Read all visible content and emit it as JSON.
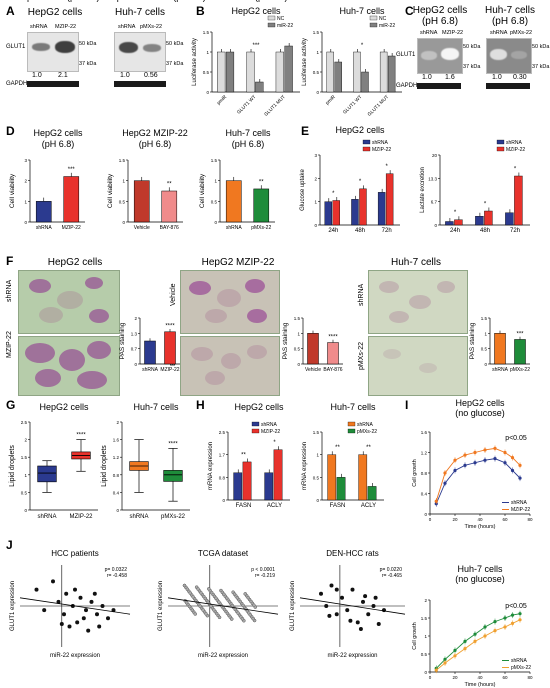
{
  "panels": {
    "A": "A",
    "B": "B",
    "C": "C",
    "D": "D",
    "E": "E",
    "F": "F",
    "G": "G",
    "H": "H",
    "I": "I",
    "J": "J"
  },
  "blotA": {
    "left": {
      "title": "HepG2 cells",
      "lanes": [
        "shRNA",
        "MZIP-22"
      ],
      "protein": "GLUT1",
      "kda1": "50 kDa",
      "kda2": "37 kDa",
      "quant": [
        "1.0",
        "2.1"
      ],
      "loading": "GAPDH"
    },
    "right": {
      "title": "Huh-7 cells",
      "lanes": [
        "shRNA",
        "pMXs-22"
      ],
      "kda1": "50 kDa",
      "kda2": "37 kDa",
      "quant": [
        "1.0",
        "0.56"
      ]
    }
  },
  "blotC": {
    "left": {
      "title": "HepG2 cells",
      "subtitle": "(pH 6.8)",
      "lanes": [
        "shRNA",
        "MZIP-22"
      ],
      "protein": "GLUT1",
      "kda1": "50 kDa",
      "kda2": "37 kDa",
      "quant": [
        "1.0",
        "1.6"
      ],
      "loading": "GAPDH"
    },
    "right": {
      "title": "Huh-7 cells",
      "subtitle": "(pH 6.8)",
      "lanes": [
        "shRNA",
        "pMXs-22"
      ],
      "kda1": "50 kDa",
      "kda2": "37 kDa",
      "quant": [
        "1.0",
        "0.30"
      ]
    }
  },
  "micro": {
    "g1": {
      "title": "HepG2 cells",
      "rows": [
        "shRNA",
        "MZIP-22"
      ]
    },
    "g2": {
      "title": "HepG2 MZIP-22",
      "rows": [
        "Vehicle",
        "BAY-876"
      ]
    },
    "g3": {
      "title": "Huh-7 cells",
      "rows": [
        "shRNA",
        "pMXs-22"
      ]
    }
  },
  "chart_data": [
    {
      "id": "B1",
      "type": "bar",
      "title": "HepG2 cells",
      "ylabel": "Luciferase activity",
      "categories": [
        "pmiR",
        "GLUT1 WT",
        "GLUT1 MUT"
      ],
      "series": [
        {
          "name": "NC",
          "values": [
            1.0,
            1.0,
            1.0
          ]
        },
        {
          "name": "miR-22",
          "values": [
            1.0,
            0.25,
            1.15
          ]
        }
      ],
      "ylim": [
        0,
        1.5
      ],
      "annotations": [
        "***"
      ]
    },
    {
      "id": "B2",
      "type": "bar",
      "title": "Huh-7 cells",
      "ylabel": "Luciferase activity",
      "categories": [
        "pmiR",
        "GLUT1 WT",
        "GLUT1 MUT"
      ],
      "series": [
        {
          "name": "NC",
          "values": [
            1.0,
            1.0,
            1.0
          ]
        },
        {
          "name": "miR-22",
          "values": [
            0.75,
            0.5,
            0.9
          ]
        }
      ],
      "ylim": [
        0,
        1.5
      ],
      "annotations": [
        "*"
      ]
    },
    {
      "id": "D1",
      "type": "bar",
      "title": "HepG2 cells (pH 6.8)",
      "ylabel": "Cell viability",
      "categories": [
        "shRNA",
        "MZIP-22"
      ],
      "values": [
        1.0,
        2.2
      ],
      "colors": [
        "#2b3a8f",
        "#e8322c"
      ],
      "ylim": [
        0,
        3
      ],
      "annotations": [
        "***"
      ]
    },
    {
      "id": "D2",
      "type": "bar",
      "title": "HepG2 MZIP-22 (pH 6.8)",
      "ylabel": "Cell viability",
      "categories": [
        "Vehicle",
        "BAY-876"
      ],
      "values": [
        1.0,
        0.75
      ],
      "colors": [
        "#c0392b",
        "#f08b8b"
      ],
      "ylim": [
        0,
        1.5
      ],
      "annotations": [
        "**"
      ]
    },
    {
      "id": "D3",
      "type": "bar",
      "title": "Huh-7 cells (pH 6.8)",
      "ylabel": "Cell viability",
      "categories": [
        "shRNA",
        "pMXs-22"
      ],
      "values": [
        1.0,
        0.8
      ],
      "colors": [
        "#f07820",
        "#1e8c3a"
      ],
      "ylim": [
        0,
        1.5
      ],
      "annotations": [
        "**"
      ]
    },
    {
      "id": "E1",
      "type": "bar",
      "title": "HepG2 cells",
      "ylabel": "Glucose uptake",
      "categories": [
        "24h",
        "48h",
        "72h"
      ],
      "series": [
        {
          "name": "shRNA",
          "values": [
            1.0,
            1.1,
            1.4
          ]
        },
        {
          "name": "MZIP-22",
          "values": [
            1.05,
            1.55,
            2.2
          ]
        }
      ],
      "ylim": [
        0,
        3
      ],
      "annotations": [
        "*",
        "*",
        "*"
      ]
    },
    {
      "id": "E2",
      "type": "bar",
      "ylabel": "Lactate excretion",
      "categories": [
        "24h",
        "48h",
        "72h"
      ],
      "series": [
        {
          "name": "shRNA",
          "values": [
            1.0,
            2.5,
            3.5
          ]
        },
        {
          "name": "MZIP-22",
          "values": [
            1.5,
            4.0,
            14.0
          ]
        }
      ],
      "ylim": [
        0,
        20
      ],
      "annotations": [
        "*",
        "*",
        "*"
      ]
    },
    {
      "id": "F1",
      "type": "bar",
      "ylabel": "PAS staining",
      "categories": [
        "shRNA",
        "MZIP-22"
      ],
      "values": [
        1.0,
        1.4
      ],
      "colors": [
        "#2b3a8f",
        "#e8322c"
      ],
      "ylim": [
        0,
        2
      ],
      "annotations": [
        "****"
      ]
    },
    {
      "id": "F2",
      "type": "bar",
      "ylabel": "PAS staining",
      "categories": [
        "Vehicle",
        "BAY-876"
      ],
      "values": [
        1.0,
        0.7
      ],
      "colors": [
        "#c0392b",
        "#f08b8b"
      ],
      "ylim": [
        0,
        1.5
      ],
      "annotations": [
        "****"
      ]
    },
    {
      "id": "F3",
      "type": "bar",
      "ylabel": "PAS staining",
      "categories": [
        "shRNA",
        "pMXs-22"
      ],
      "values": [
        1.0,
        0.8
      ],
      "colors": [
        "#f07820",
        "#1e8c3a"
      ],
      "ylim": [
        0,
        1.5
      ],
      "annotations": [
        "***"
      ]
    },
    {
      "id": "G1",
      "type": "box",
      "title": "HepG2 cells",
      "ylabel": "Lipid droplets",
      "categories": [
        "shRNA",
        "MZIP-22"
      ],
      "boxes": [
        {
          "min": 0.5,
          "q1": 0.8,
          "median": 1.05,
          "q3": 1.25,
          "max": 1.4
        },
        {
          "min": 1.1,
          "q1": 1.45,
          "median": 1.55,
          "q3": 1.65,
          "max": 2.0
        }
      ],
      "colors": [
        "#2b3a8f",
        "#e8322c"
      ],
      "ylim": [
        0,
        2.5
      ],
      "annotations": [
        "****"
      ]
    },
    {
      "id": "G2",
      "type": "box",
      "title": "Huh-7 cells",
      "ylabel": "Lipid droplets",
      "categories": [
        "shRNA",
        "pMXs-22"
      ],
      "boxes": [
        {
          "min": 0.4,
          "q1": 0.9,
          "median": 1.0,
          "q3": 1.1,
          "max": 1.6
        },
        {
          "min": 0.2,
          "q1": 0.65,
          "median": 0.8,
          "q3": 0.9,
          "max": 1.4
        }
      ],
      "colors": [
        "#f07820",
        "#1e8c3a"
      ],
      "ylim": [
        0,
        2
      ],
      "annotations": [
        "****"
      ]
    },
    {
      "id": "H1",
      "type": "bar",
      "title": "HepG2 cells",
      "ylabel": "mRNA expression",
      "categories": [
        "FASN",
        "ACLY"
      ],
      "series": [
        {
          "name": "shRNA",
          "values": [
            1.0,
            1.0
          ]
        },
        {
          "name": "MZIP-22",
          "values": [
            1.4,
            1.85
          ]
        }
      ],
      "ylim": [
        0,
        2.5
      ],
      "annotations": [
        "**",
        "*"
      ]
    },
    {
      "id": "H2",
      "type": "bar",
      "title": "Huh-7 cells",
      "ylabel": "mRNA expression",
      "categories": [
        "FASN",
        "ACLY"
      ],
      "series": [
        {
          "name": "shRNA",
          "values": [
            1.0,
            1.0
          ]
        },
        {
          "name": "pMXs-22",
          "values": [
            0.5,
            0.3
          ]
        }
      ],
      "ylim": [
        0,
        1.5
      ],
      "annotations": [
        "**",
        "**"
      ]
    },
    {
      "id": "I1",
      "type": "line",
      "title": "HepG2 cells (no glucose)",
      "xlabel": "Time (hours)",
      "ylabel": "Cell growth",
      "series": [
        {
          "name": "shRNA",
          "values": [
            0.2,
            0.6,
            0.85,
            0.95,
            1.0,
            1.05,
            1.08,
            1.0,
            0.85,
            0.7
          ]
        },
        {
          "name": "MZIP-22",
          "values": [
            0.25,
            0.8,
            1.05,
            1.15,
            1.2,
            1.25,
            1.28,
            1.2,
            1.1,
            0.95
          ]
        }
      ],
      "x": [
        5,
        12,
        20,
        28,
        36,
        44,
        52,
        60,
        66,
        72
      ],
      "xlim": [
        0,
        80
      ],
      "ylim": [
        0,
        1.6
      ],
      "annotations": [
        "p<0.05"
      ]
    },
    {
      "id": "I2",
      "type": "line",
      "title": "Huh-7 cells (no glucose)",
      "xlabel": "Time (hours)",
      "ylabel": "Cell growth",
      "series": [
        {
          "name": "shRNA",
          "values": [
            0.1,
            0.35,
            0.6,
            0.85,
            1.05,
            1.25,
            1.4,
            1.5,
            1.58,
            1.62
          ]
        },
        {
          "name": "pMXs-22",
          "values": [
            0.05,
            0.25,
            0.45,
            0.65,
            0.85,
            1.0,
            1.15,
            1.25,
            1.35,
            1.45
          ]
        }
      ],
      "x": [
        5,
        12,
        20,
        28,
        36,
        44,
        52,
        60,
        66,
        72
      ],
      "xlim": [
        0,
        80
      ],
      "ylim": [
        0,
        2
      ],
      "annotations": [
        "p<0.05"
      ]
    },
    {
      "id": "J1",
      "type": "scatter",
      "title": "HCC patients",
      "xlabel": "miR-22 expression",
      "ylabel": "GLUT1 expression",
      "stats": [
        "p= 0.0322",
        "r= -0.458"
      ]
    },
    {
      "id": "J2",
      "type": "scatter",
      "title": "TCGA dataset",
      "xlabel": "miR-22 expression",
      "ylabel": "GLUT1 expression",
      "stats": [
        "p < 0.0001",
        "r= -0.219"
      ]
    },
    {
      "id": "J3",
      "type": "scatter",
      "title": "DEN-HCC rats",
      "xlabel": "miR-22 expression",
      "ylabel": "GLUT1 expression",
      "stats": [
        "p= 0.0220",
        "r= -0.465"
      ]
    }
  ]
}
